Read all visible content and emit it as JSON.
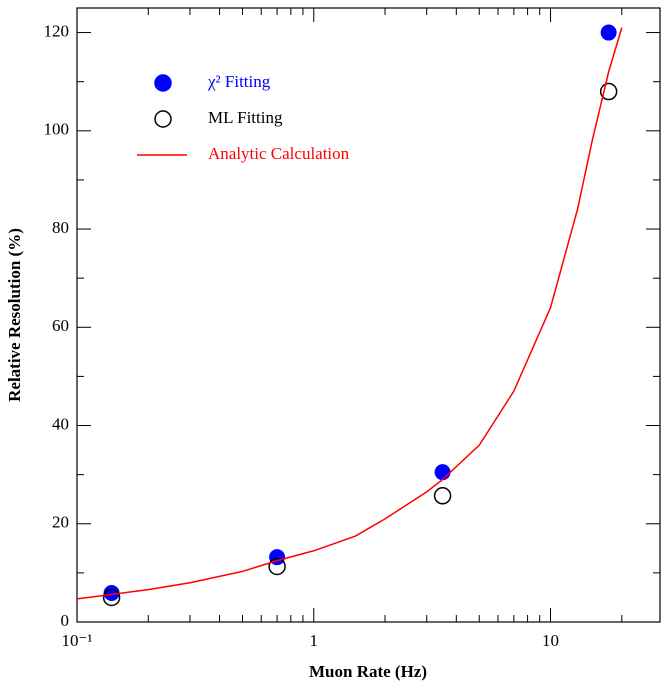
{
  "chart_data": {
    "type": "scatter",
    "x_label": "Muon Rate (Hz)",
    "y_label": "Relative Resolution (%)",
    "xscale": "log",
    "xlim": [
      0.1,
      29
    ],
    "ylim": [
      0,
      125
    ],
    "xticks": [
      {
        "value": 0.1,
        "label": "10⁻¹"
      },
      1,
      10
    ],
    "xminorticks": [
      0.2,
      0.3,
      0.4,
      0.5,
      0.6,
      0.7,
      0.8,
      0.9,
      2,
      3,
      4,
      5,
      6,
      7,
      8,
      9,
      20
    ],
    "yticks": [
      0,
      20,
      40,
      60,
      80,
      100,
      120
    ],
    "yminorticks": [
      10,
      30,
      50,
      70,
      90,
      110
    ],
    "legend": "upper left",
    "series": [
      {
        "name": "χ² Fitting",
        "kind": "filled-marker",
        "color": "#0000ff",
        "x": [
          0.14,
          0.7,
          3.5,
          17.6
        ],
        "values": [
          5.9,
          13.2,
          30.5,
          120
        ]
      },
      {
        "name": "ML Fitting",
        "kind": "open-marker",
        "color": "#000000",
        "x": [
          0.14,
          0.7,
          3.5,
          17.6
        ],
        "values": [
          5.0,
          11.3,
          25.7,
          108
        ]
      },
      {
        "name": "Analytic Calculation",
        "kind": "line",
        "color": "#ff0000",
        "x": [
          0.1,
          0.14,
          0.2,
          0.3,
          0.5,
          0.7,
          1,
          1.5,
          2,
          3,
          3.5,
          5,
          7,
          10,
          13,
          15,
          17.6,
          20
        ],
        "values": [
          4.7,
          5.6,
          6.6,
          8,
          10.3,
          12.5,
          14.5,
          17.5,
          21,
          26.5,
          29,
          36,
          47,
          64,
          84,
          98,
          112,
          121
        ]
      }
    ]
  }
}
